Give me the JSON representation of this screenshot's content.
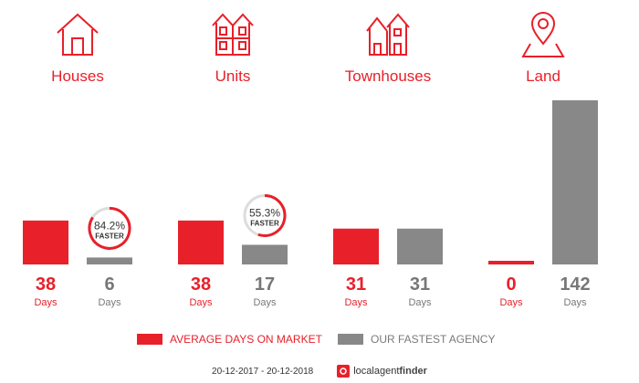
{
  "categories": [
    {
      "label": "Houses",
      "icon": "house-icon"
    },
    {
      "label": "Units",
      "icon": "units-icon"
    },
    {
      "label": "Townhouses",
      "icon": "townhouses-icon"
    },
    {
      "label": "Land",
      "icon": "land-pin-icon"
    }
  ],
  "legend": {
    "average": "AVERAGE DAYS ON MARKET",
    "fastest": "OUR FASTEST AGENCY"
  },
  "footer": {
    "date_range": "20-12-2017 - 20-12-2018",
    "brand_prefix": "localagent",
    "brand_suffix": "finder"
  },
  "colors": {
    "accent": "#e8202a",
    "grey": "#888888"
  },
  "chart_data": {
    "type": "bar",
    "categories": [
      "Houses",
      "Units",
      "Townhouses",
      "Land"
    ],
    "series": [
      {
        "name": "AVERAGE DAYS ON MARKET",
        "values": [
          38,
          38,
          31,
          0
        ],
        "color": "#e8202a"
      },
      {
        "name": "OUR FASTEST AGENCY",
        "values": [
          6,
          17,
          31,
          142
        ],
        "color": "#888888"
      }
    ],
    "value_unit": "Days",
    "faster_badges": [
      {
        "category": "Houses",
        "percent": "84.2%",
        "label": "FASTER"
      },
      {
        "category": "Units",
        "percent": "55.3%",
        "label": "FASTER"
      }
    ]
  }
}
